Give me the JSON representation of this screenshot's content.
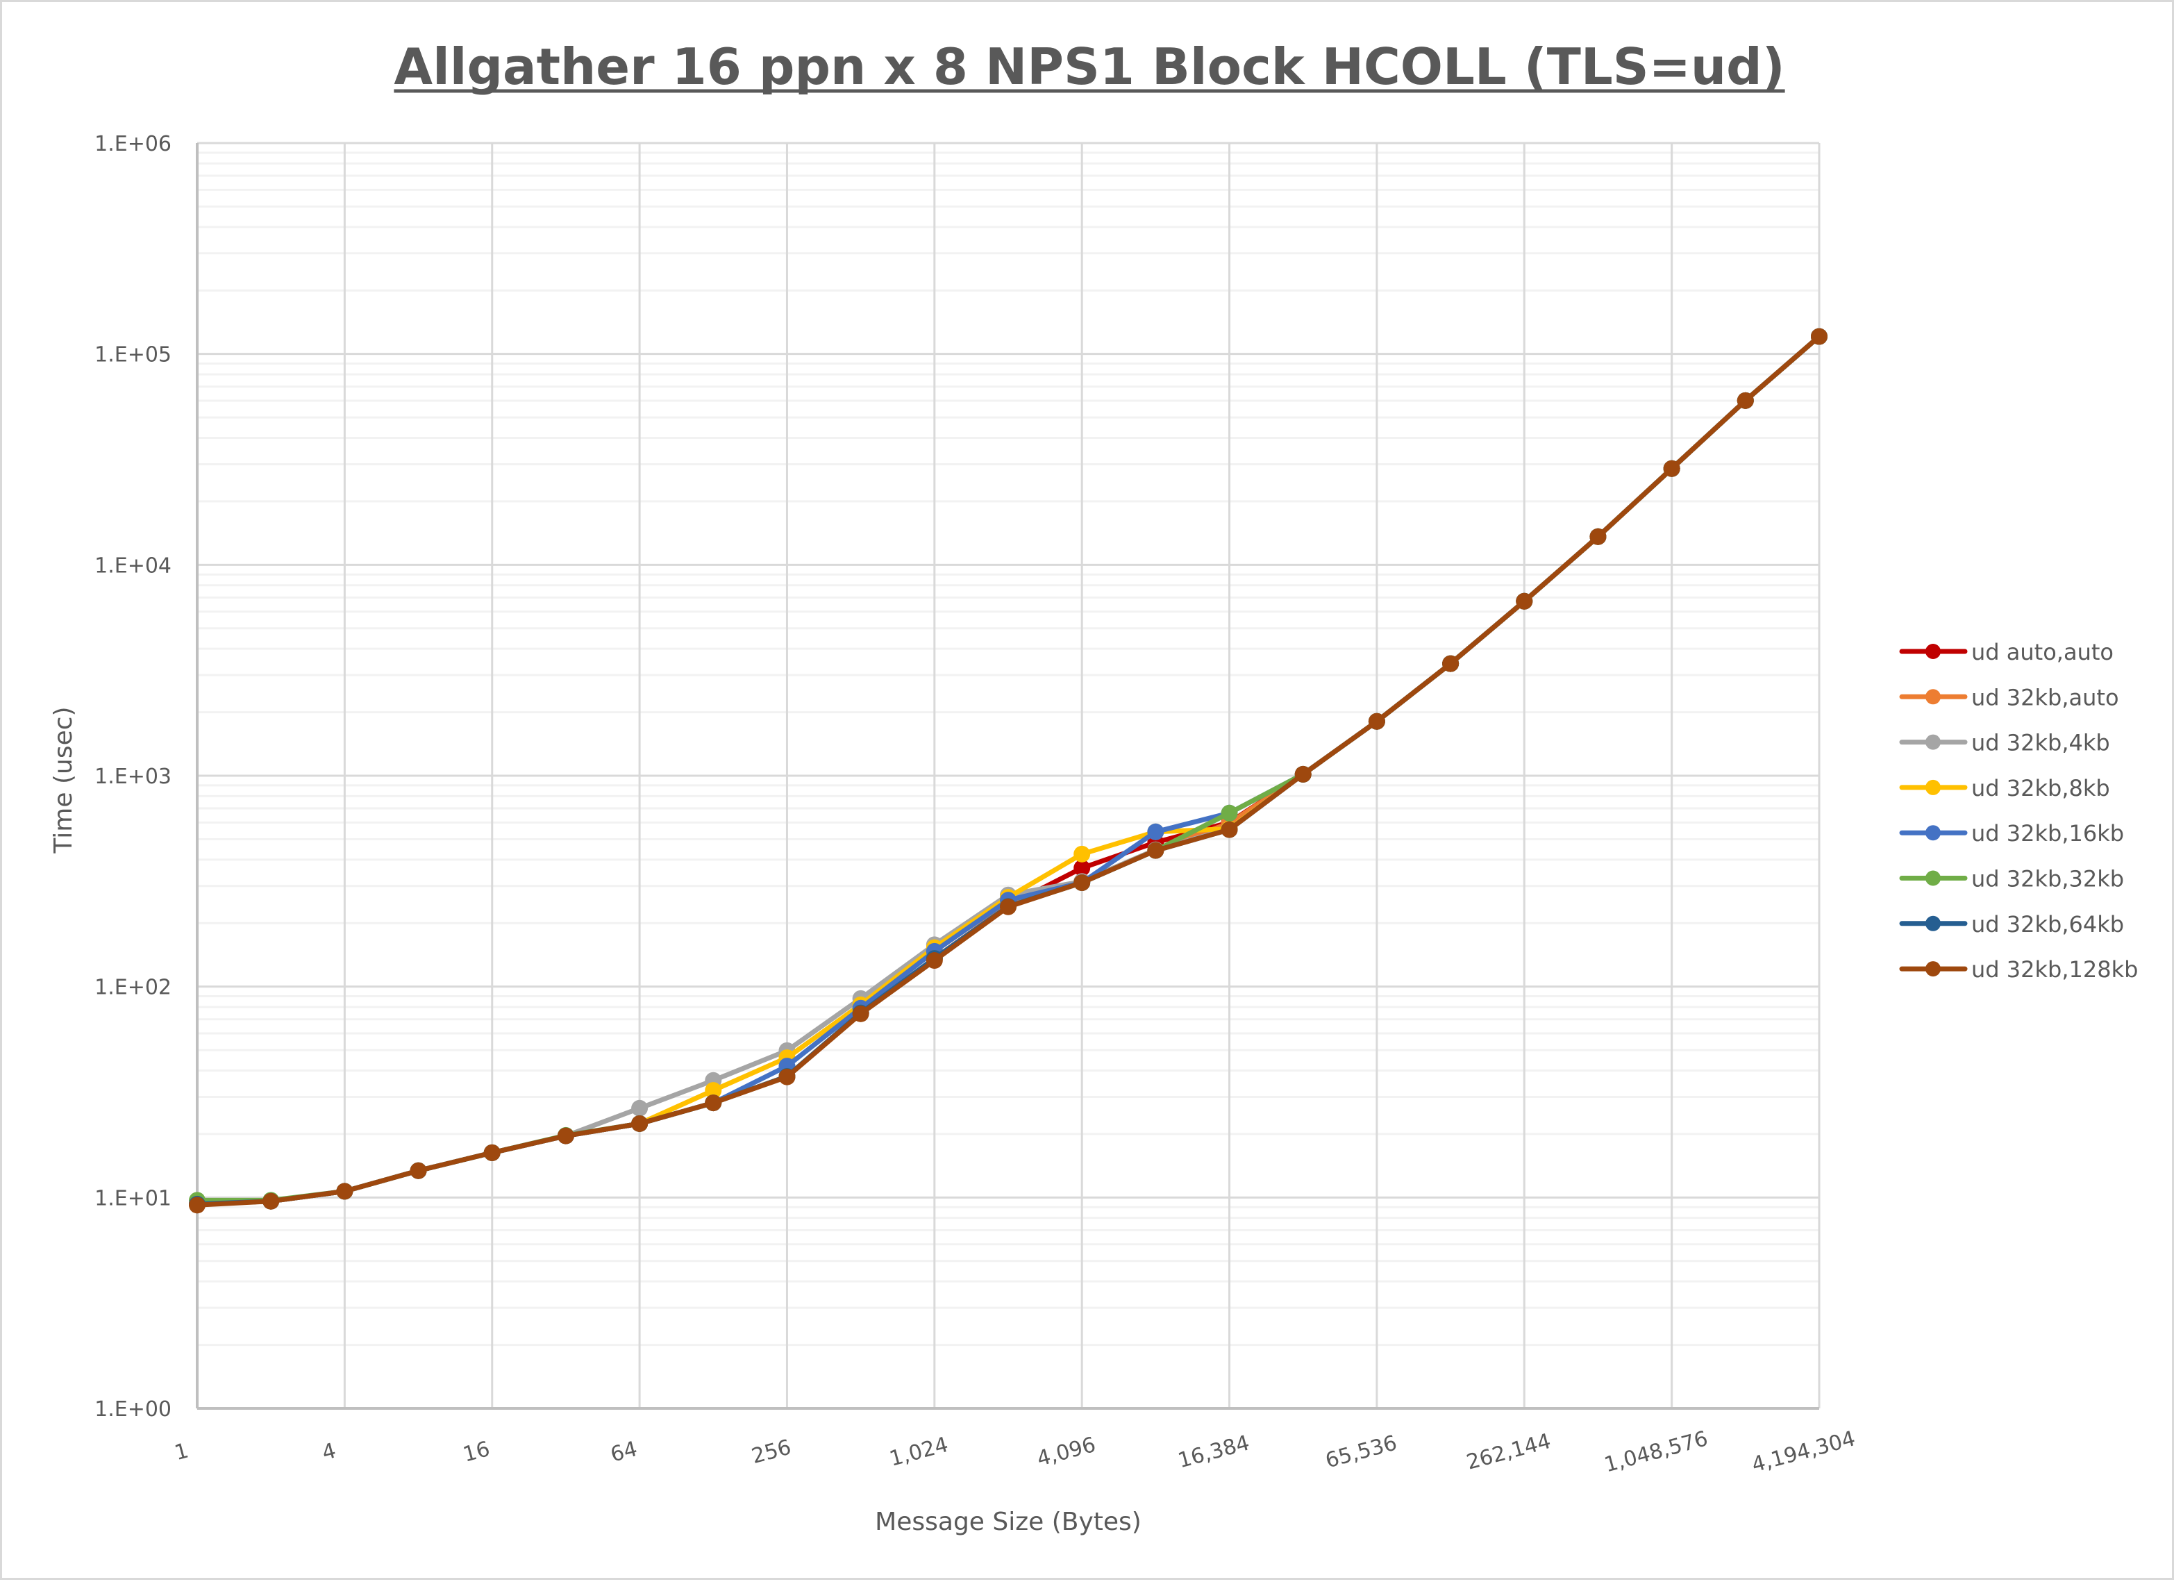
{
  "chart_data": {
    "type": "line",
    "title": "Allgather 16 ppn x 8 NPS1 Block HCOLL (TLS=ud)",
    "xlabel": "Message Size (Bytes)",
    "ylabel": "Time (usec)",
    "xscale": "log2",
    "yscale": "log10",
    "ylim": [
      1,
      1000000
    ],
    "y_tick_labels": [
      "1.E+00",
      "1.E+01",
      "1.E+02",
      "1.E+03",
      "1.E+04",
      "1.E+05",
      "1.E+06"
    ],
    "x_tick_labels": [
      "1",
      "4",
      "16",
      "64",
      "256",
      "1,024",
      "4,096",
      "16,384",
      "65,536",
      "262,144",
      "1,048,576",
      "4,194,304"
    ],
    "grid": true,
    "legend_position": "right",
    "x": [
      1,
      2,
      4,
      8,
      16,
      32,
      64,
      128,
      256,
      512,
      1024,
      2048,
      4096,
      8192,
      16384,
      32768,
      65536,
      131072,
      262144,
      524288,
      1048576,
      2097152,
      4194304
    ],
    "series": [
      {
        "name": "ud auto,auto",
        "color": "#c00000",
        "values": [
          9.3,
          9.6,
          10.7,
          13.4,
          16.3,
          19.6,
          22.4,
          28.1,
          37.5,
          75,
          136,
          242,
          365,
          483,
          600,
          1016,
          1810,
          3400,
          6720,
          13600,
          28600,
          60100,
          121000
        ]
      },
      {
        "name": "ud 32kb,auto",
        "color": "#ed7d31",
        "values": [
          9.3,
          9.6,
          10.7,
          13.4,
          16.3,
          19.6,
          22.4,
          28.1,
          37.5,
          75,
          136,
          242,
          315,
          445,
          595,
          1016,
          1810,
          3400,
          6720,
          13600,
          28600,
          60100,
          121000
        ]
      },
      {
        "name": "ud 32kb,4kb",
        "color": "#a5a5a5",
        "values": [
          9.3,
          9.6,
          10.7,
          13.4,
          16.3,
          19.6,
          26.5,
          35.9,
          49.7,
          87.8,
          158,
          272,
          315,
          445,
          560,
          1016,
          1810,
          3400,
          6720,
          13600,
          28600,
          60100,
          121000
        ]
      },
      {
        "name": "ud 32kb,8kb",
        "color": "#ffc000",
        "values": [
          9.3,
          9.6,
          10.7,
          13.4,
          16.3,
          19.6,
          22.4,
          32.2,
          46,
          82,
          153,
          265,
          425,
          542,
          560,
          1016,
          1810,
          3400,
          6720,
          13600,
          28600,
          60100,
          121000
        ]
      },
      {
        "name": "ud 32kb,16kb",
        "color": "#4472c4",
        "values": [
          9.3,
          9.6,
          10.7,
          13.4,
          16.3,
          19.6,
          22.4,
          28.1,
          42,
          79,
          147,
          257,
          311,
          542,
          665,
          1016,
          1810,
          3400,
          6720,
          13600,
          28600,
          60100,
          121000
        ]
      },
      {
        "name": "ud 32kb,32kb",
        "color": "#70ad47",
        "values": [
          9.7,
          9.7,
          10.7,
          13.4,
          16.3,
          19.7,
          22.4,
          28.1,
          37.5,
          75,
          136,
          240,
          311,
          442,
          665,
          1016,
          1810,
          3400,
          6720,
          13600,
          28600,
          60100,
          121000
        ]
      },
      {
        "name": "ud 32kb,64kb",
        "color": "#255e91",
        "values": [
          9.3,
          9.6,
          10.7,
          13.4,
          16.3,
          19.6,
          22.4,
          28.1,
          37.5,
          75,
          136,
          240,
          311,
          442,
          555,
          1016,
          1810,
          3400,
          6720,
          13600,
          28600,
          60100,
          121000
        ]
      },
      {
        "name": "ud 32kb,128kb",
        "color": "#9e480e",
        "values": [
          9.2,
          9.6,
          10.7,
          13.4,
          16.3,
          19.6,
          22.4,
          28.1,
          37.3,
          74.3,
          133,
          239,
          311,
          442,
          555,
          1016,
          1810,
          3400,
          6720,
          13600,
          28600,
          60100,
          121000
        ]
      }
    ]
  },
  "style": {
    "text_color": "#595959",
    "major_grid_color": "#d9d9d9",
    "minor_grid_color": "#f2f2f2",
    "axis_color": "#bfbfbf",
    "border_color": "#d9d9d9"
  }
}
